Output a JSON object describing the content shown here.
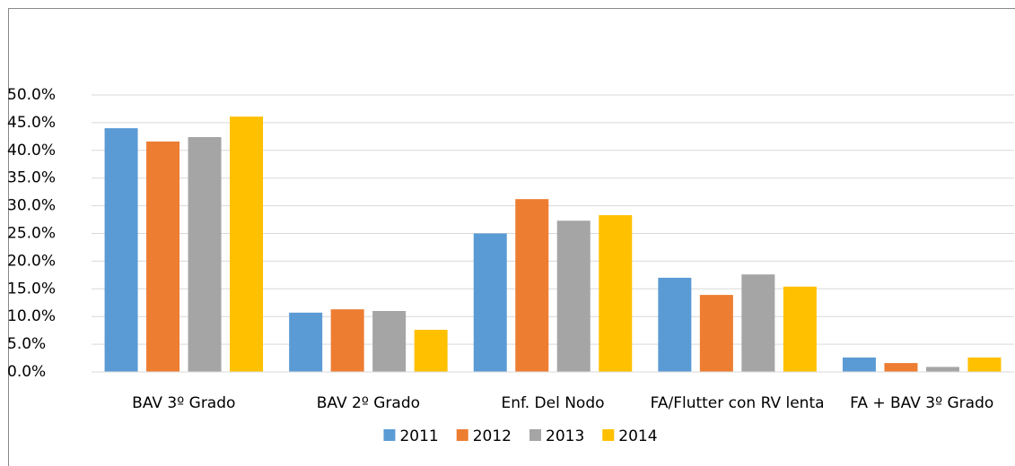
{
  "chart_data": {
    "type": "bar",
    "categories": [
      "BAV 3º Grado",
      "BAV 2º Grado",
      "Enf. Del Nodo",
      "FA/Flutter con RV lenta",
      "FA + BAV 3º Grado"
    ],
    "series": [
      {
        "name": "2011",
        "color": "#5b9bd5",
        "values": [
          44.0,
          10.7,
          25.0,
          17.0,
          2.6
        ]
      },
      {
        "name": "2012",
        "color": "#ed7d31",
        "values": [
          41.6,
          11.3,
          31.2,
          13.9,
          1.6
        ]
      },
      {
        "name": "2013",
        "color": "#a5a5a5",
        "values": [
          42.4,
          11.0,
          27.3,
          17.6,
          0.9
        ]
      },
      {
        "name": "2014",
        "color": "#ffc000",
        "values": [
          46.1,
          7.6,
          28.3,
          15.4,
          2.6
        ]
      }
    ],
    "ylim": [
      0,
      50
    ],
    "yticks": [
      {
        "value": 0,
        "label": "0.0%"
      },
      {
        "value": 5,
        "label": "5.0%"
      },
      {
        "value": 10,
        "label": "10.0%"
      },
      {
        "value": 15,
        "label": "15.0%"
      },
      {
        "value": 20,
        "label": "20.0%"
      },
      {
        "value": 25,
        "label": "25.0%"
      },
      {
        "value": 30,
        "label": "30.0%"
      },
      {
        "value": 35,
        "label": "35.0%"
      },
      {
        "value": 40,
        "label": "40.0%"
      },
      {
        "value": 45,
        "label": "45.0%"
      },
      {
        "value": 50,
        "label": "50.0%"
      }
    ],
    "grid": true,
    "legend": "bottom"
  }
}
